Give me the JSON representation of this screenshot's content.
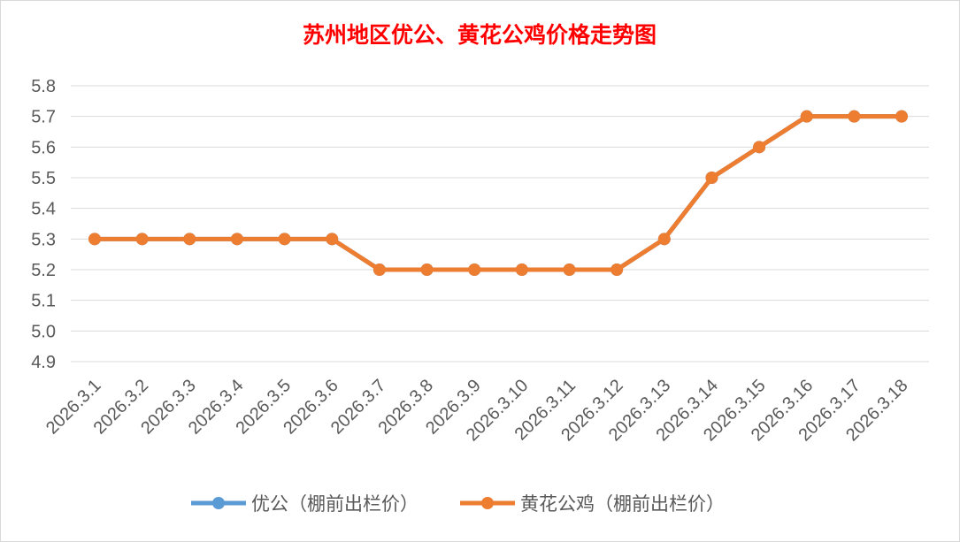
{
  "chart_data": {
    "type": "line",
    "title": "苏州地区优公、黄花公鸡价格走势图",
    "title_color": "#ff0000",
    "categories": [
      "2026.3.1",
      "2026.3.2",
      "2026.3.3",
      "2026.3.4",
      "2026.3.5",
      "2026.3.6",
      "2026.3.7",
      "2026.3.8",
      "2026.3.9",
      "2026.3.10",
      "2026.3.11",
      "2026.3.12",
      "2026.3.13",
      "2026.3.14",
      "2026.3.15",
      "2026.3.16",
      "2026.3.17",
      "2026.3.18"
    ],
    "series": [
      {
        "name": "优公（棚前出栏价）",
        "color": "#5b9bd5",
        "values": [
          5.3,
          5.3,
          5.3,
          5.3,
          5.3,
          5.3,
          5.2,
          5.2,
          5.2,
          5.2,
          5.2,
          5.2,
          5.3,
          5.5,
          5.6,
          5.7,
          5.7,
          5.7
        ]
      },
      {
        "name": "黄花公鸡（棚前出栏价）",
        "color": "#ed7d31",
        "values": [
          5.3,
          5.3,
          5.3,
          5.3,
          5.3,
          5.3,
          5.2,
          5.2,
          5.2,
          5.2,
          5.2,
          5.2,
          5.3,
          5.5,
          5.6,
          5.7,
          5.7,
          5.7
        ]
      }
    ],
    "ylim": [
      4.9,
      5.8
    ],
    "yticks": [
      "4.9",
      "5.0",
      "5.1",
      "5.2",
      "5.3",
      "5.4",
      "5.5",
      "5.6",
      "5.7",
      "5.8"
    ],
    "xlabel": "",
    "ylabel": "",
    "grid": true,
    "legend_position": "bottom"
  }
}
